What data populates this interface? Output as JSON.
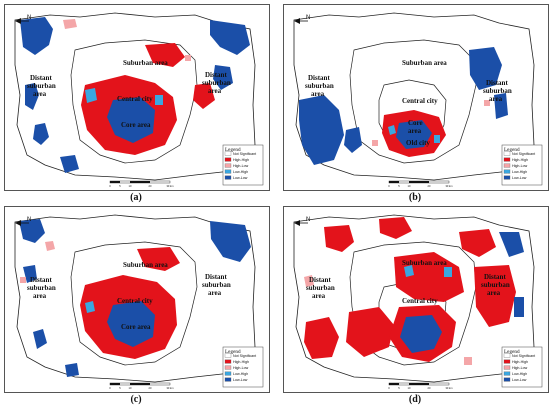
{
  "legend": {
    "title": "Legend",
    "items": [
      {
        "label": "Not Significant",
        "color": "#ffffff"
      },
      {
        "label": "High-High",
        "color": "#e3131b"
      },
      {
        "label": "High-Low",
        "color": "#f4a6a8"
      },
      {
        "label": "Low-High",
        "color": "#3aa7e0"
      },
      {
        "label": "Low-Low",
        "color": "#1b4fa8"
      }
    ]
  },
  "north_label": "N",
  "scale_ticks": [
    "0",
    "5",
    "10",
    "20",
    "30 km"
  ],
  "panels": [
    {
      "caption": "(a)",
      "labels": {
        "distant": "Distant\nsuburban\narea",
        "suburban": "Suburban area",
        "distant_right": "Distant\nsuburban\narea",
        "central": "Central city",
        "core": "Core area"
      }
    },
    {
      "caption": "(b)",
      "labels": {
        "distant": "Distant\nsuburban\narea",
        "suburban": "Suburban area",
        "distant_right": "Distant\nsuburban\narea",
        "central": "Central city",
        "core": "Core\narea",
        "old": "Old city"
      }
    },
    {
      "caption": "(c)",
      "labels": {
        "distant": "Distant\nsuburban\narea",
        "suburban": "Suburban area",
        "distant_right": "Distant\nsuburban\narea",
        "central": "Central city",
        "core": "Core area"
      }
    },
    {
      "caption": "(d)",
      "labels": {
        "distant": "Distant\nsuburban\narea",
        "suburban": "Suburban area",
        "distant_right": "Distant\nsuburban\narea",
        "central": "Central city"
      }
    }
  ]
}
